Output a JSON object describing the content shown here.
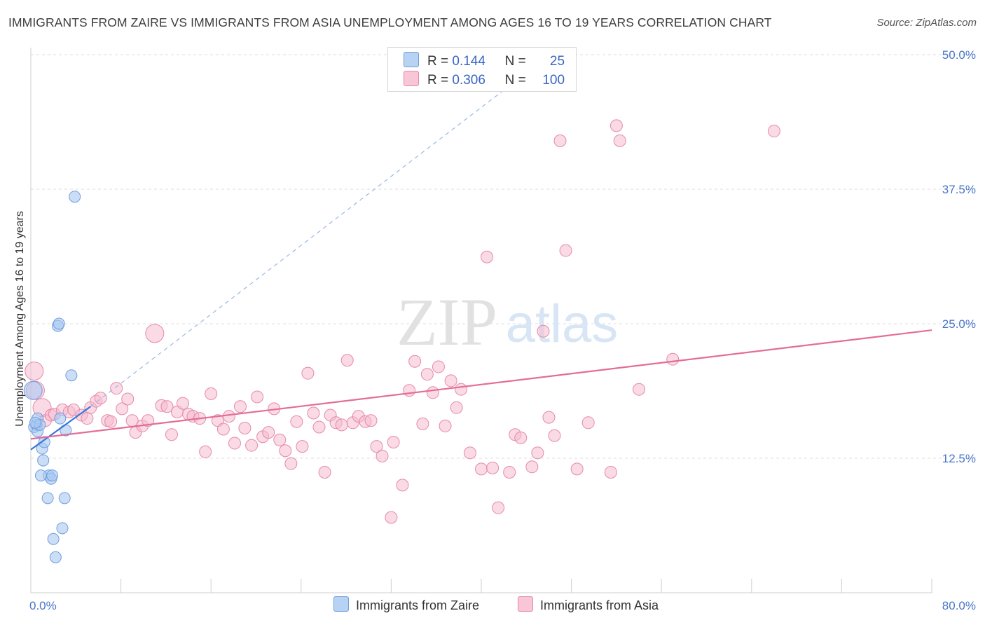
{
  "chart_data": {
    "type": "scatter",
    "title": "IMMIGRANTS FROM ZAIRE VS IMMIGRANTS FROM ASIA UNEMPLOYMENT AMONG AGES 16 TO 19 YEARS CORRELATION CHART",
    "source": "Source: ZipAtlas.com",
    "ylabel": "Unemployment Among Ages 16 to 19 years",
    "xlabel": "",
    "xlim": [
      0,
      80
    ],
    "ylim": [
      0,
      50
    ],
    "x_tick_labels": [
      "0.0%",
      "80.0%"
    ],
    "y_ticks": [
      12.5,
      25.0,
      37.5,
      50.0
    ],
    "y_tick_labels": [
      "12.5%",
      "25.0%",
      "37.5%",
      "50.0%"
    ],
    "grid": true,
    "legend": {
      "position": "top-center",
      "rows": [
        {
          "r_label": "R =",
          "r_value": "0.144",
          "n_label": "N =",
          "n_value": "25"
        },
        {
          "r_label": "R =",
          "r_value": "0.306",
          "n_label": "N =",
          "n_value": "100"
        }
      ]
    },
    "series": [
      {
        "name": "Immigrants from Zaire",
        "color": "#a9c8f0",
        "edge": "#6f9de0",
        "line_color": "#3a76d8",
        "trend": {
          "x0": 0.0,
          "y0": 13.3,
          "x1": 5.3,
          "y1": 17.3,
          "dash_to_x": 43.0,
          "dash_to_y": 47.5
        },
        "points": [
          [
            0.2,
            18.8
          ],
          [
            0.3,
            15.4
          ],
          [
            0.5,
            15.6
          ],
          [
            0.6,
            16.2
          ],
          [
            0.6,
            15.0
          ],
          [
            0.8,
            15.6
          ],
          [
            1.0,
            13.4
          ],
          [
            1.1,
            12.3
          ],
          [
            1.2,
            14.0
          ],
          [
            1.5,
            8.8
          ],
          [
            1.6,
            10.9
          ],
          [
            1.8,
            10.6
          ],
          [
            2.0,
            5.0
          ],
          [
            2.2,
            3.3
          ],
          [
            2.4,
            24.8
          ],
          [
            2.5,
            25.0
          ],
          [
            2.6,
            16.2
          ],
          [
            2.8,
            6.0
          ],
          [
            3.0,
            8.8
          ],
          [
            3.1,
            15.1
          ],
          [
            3.6,
            20.2
          ],
          [
            3.9,
            36.8
          ],
          [
            0.9,
            10.9
          ],
          [
            1.9,
            10.9
          ],
          [
            0.4,
            15.8
          ]
        ]
      },
      {
        "name": "Immigrants from Asia",
        "color": "#f6bcd0",
        "edge": "#e58aa9",
        "line_color": "#e46c98",
        "trend": {
          "x0": 0.0,
          "y0": 14.3,
          "x1": 80.0,
          "y1": 24.4
        },
        "points": [
          [
            0.3,
            20.6
          ],
          [
            0.4,
            18.8
          ],
          [
            1.0,
            17.2
          ],
          [
            1.3,
            16.0
          ],
          [
            1.8,
            16.5
          ],
          [
            2.1,
            16.6
          ],
          [
            2.8,
            17.0
          ],
          [
            3.4,
            16.8
          ],
          [
            3.8,
            17.0
          ],
          [
            4.5,
            16.5
          ],
          [
            5.0,
            16.2
          ],
          [
            5.3,
            17.2
          ],
          [
            5.8,
            17.8
          ],
          [
            6.2,
            18.1
          ],
          [
            6.8,
            16.0
          ],
          [
            7.1,
            15.9
          ],
          [
            7.6,
            19.0
          ],
          [
            8.1,
            17.1
          ],
          [
            8.6,
            18.0
          ],
          [
            9.0,
            16.0
          ],
          [
            9.3,
            14.9
          ],
          [
            9.9,
            15.5
          ],
          [
            10.4,
            16.0
          ],
          [
            11.0,
            24.1
          ],
          [
            11.6,
            17.4
          ],
          [
            12.1,
            17.3
          ],
          [
            12.5,
            14.7
          ],
          [
            13.0,
            16.8
          ],
          [
            13.5,
            17.6
          ],
          [
            14.0,
            16.6
          ],
          [
            14.4,
            16.4
          ],
          [
            15.0,
            16.2
          ],
          [
            15.5,
            13.1
          ],
          [
            16.0,
            18.5
          ],
          [
            16.6,
            16.0
          ],
          [
            17.1,
            15.2
          ],
          [
            17.6,
            16.4
          ],
          [
            18.1,
            13.9
          ],
          [
            18.6,
            17.3
          ],
          [
            19.0,
            15.3
          ],
          [
            19.6,
            13.7
          ],
          [
            20.1,
            18.2
          ],
          [
            20.6,
            14.5
          ],
          [
            21.1,
            14.9
          ],
          [
            21.6,
            17.1
          ],
          [
            22.1,
            14.2
          ],
          [
            22.6,
            13.2
          ],
          [
            23.1,
            12.0
          ],
          [
            23.6,
            15.9
          ],
          [
            24.1,
            13.6
          ],
          [
            24.6,
            20.4
          ],
          [
            25.1,
            16.7
          ],
          [
            25.6,
            15.4
          ],
          [
            26.1,
            11.2
          ],
          [
            26.6,
            16.5
          ],
          [
            27.1,
            15.8
          ],
          [
            27.6,
            15.6
          ],
          [
            28.1,
            21.6
          ],
          [
            28.6,
            15.8
          ],
          [
            29.1,
            16.4
          ],
          [
            29.7,
            15.9
          ],
          [
            30.2,
            16.0
          ],
          [
            30.7,
            13.6
          ],
          [
            31.2,
            12.7
          ],
          [
            32.2,
            14.0
          ],
          [
            33.0,
            10.0
          ],
          [
            33.6,
            18.8
          ],
          [
            34.1,
            21.5
          ],
          [
            34.8,
            15.7
          ],
          [
            35.2,
            20.3
          ],
          [
            35.7,
            18.6
          ],
          [
            36.2,
            21.0
          ],
          [
            36.8,
            15.5
          ],
          [
            37.3,
            19.7
          ],
          [
            37.8,
            17.2
          ],
          [
            38.2,
            18.9
          ],
          [
            39.0,
            13.0
          ],
          [
            40.0,
            11.5
          ],
          [
            40.5,
            31.2
          ],
          [
            41.0,
            11.6
          ],
          [
            41.5,
            7.9
          ],
          [
            42.5,
            11.2
          ],
          [
            43.0,
            14.7
          ],
          [
            43.5,
            14.4
          ],
          [
            44.5,
            11.7
          ],
          [
            45.0,
            13.0
          ],
          [
            45.5,
            24.3
          ],
          [
            46.0,
            16.3
          ],
          [
            46.5,
            14.6
          ],
          [
            47.0,
            42.0
          ],
          [
            47.5,
            31.8
          ],
          [
            48.5,
            11.5
          ],
          [
            49.5,
            15.8
          ],
          [
            51.5,
            11.2
          ],
          [
            52.0,
            43.4
          ],
          [
            52.3,
            42.0
          ],
          [
            54.0,
            18.9
          ],
          [
            57.0,
            21.7
          ],
          [
            66.0,
            42.9
          ],
          [
            32.0,
            7.0
          ]
        ]
      }
    ],
    "watermark": {
      "zip": "ZIP",
      "atlas": "atlas"
    }
  }
}
